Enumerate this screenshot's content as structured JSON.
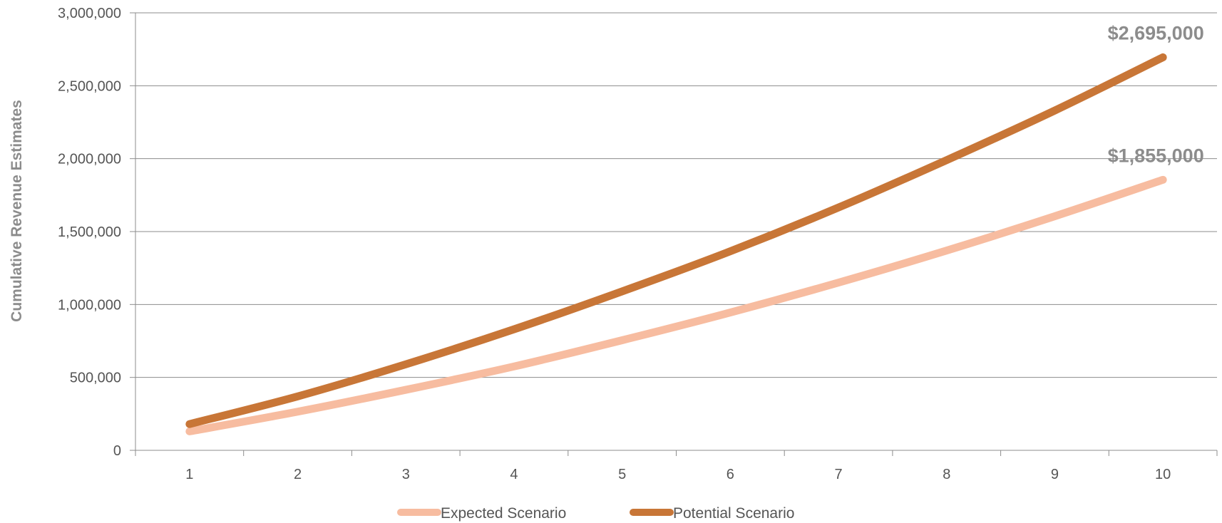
{
  "chart_data": {
    "type": "line",
    "x": [
      1,
      2,
      3,
      4,
      5,
      6,
      7,
      8,
      9,
      10
    ],
    "xlabel": "",
    "ylabel": "Cumulative Revenue Estimates",
    "ylim": [
      0,
      3000000
    ],
    "yticks": [
      0,
      500000,
      1000000,
      1500000,
      2000000,
      2500000,
      3000000
    ],
    "ytick_labels": [
      "0",
      "500,000",
      "1,000,000",
      "1,500,000",
      "2,000,000",
      "2,500,000",
      "3,000,000"
    ],
    "xtick_labels": [
      "1",
      "2",
      "3",
      "4",
      "5",
      "6",
      "7",
      "8",
      "9",
      "10"
    ],
    "grid": "horizontal",
    "legend_position": "bottom",
    "series": [
      {
        "name": "Expected Scenario",
        "color": "#f7bca0",
        "values": [
          130000,
          265000,
          415000,
          575000,
          755000,
          945000,
          1150000,
          1370000,
          1605000,
          1855000
        ],
        "end_label": "$1,855,000"
      },
      {
        "name": "Potential Scenario",
        "color": "#c87637",
        "values": [
          180000,
          370000,
          590000,
          830000,
          1090000,
          1365000,
          1665000,
          1990000,
          2330000,
          2695000
        ],
        "end_label": "$2,695,000"
      }
    ]
  }
}
